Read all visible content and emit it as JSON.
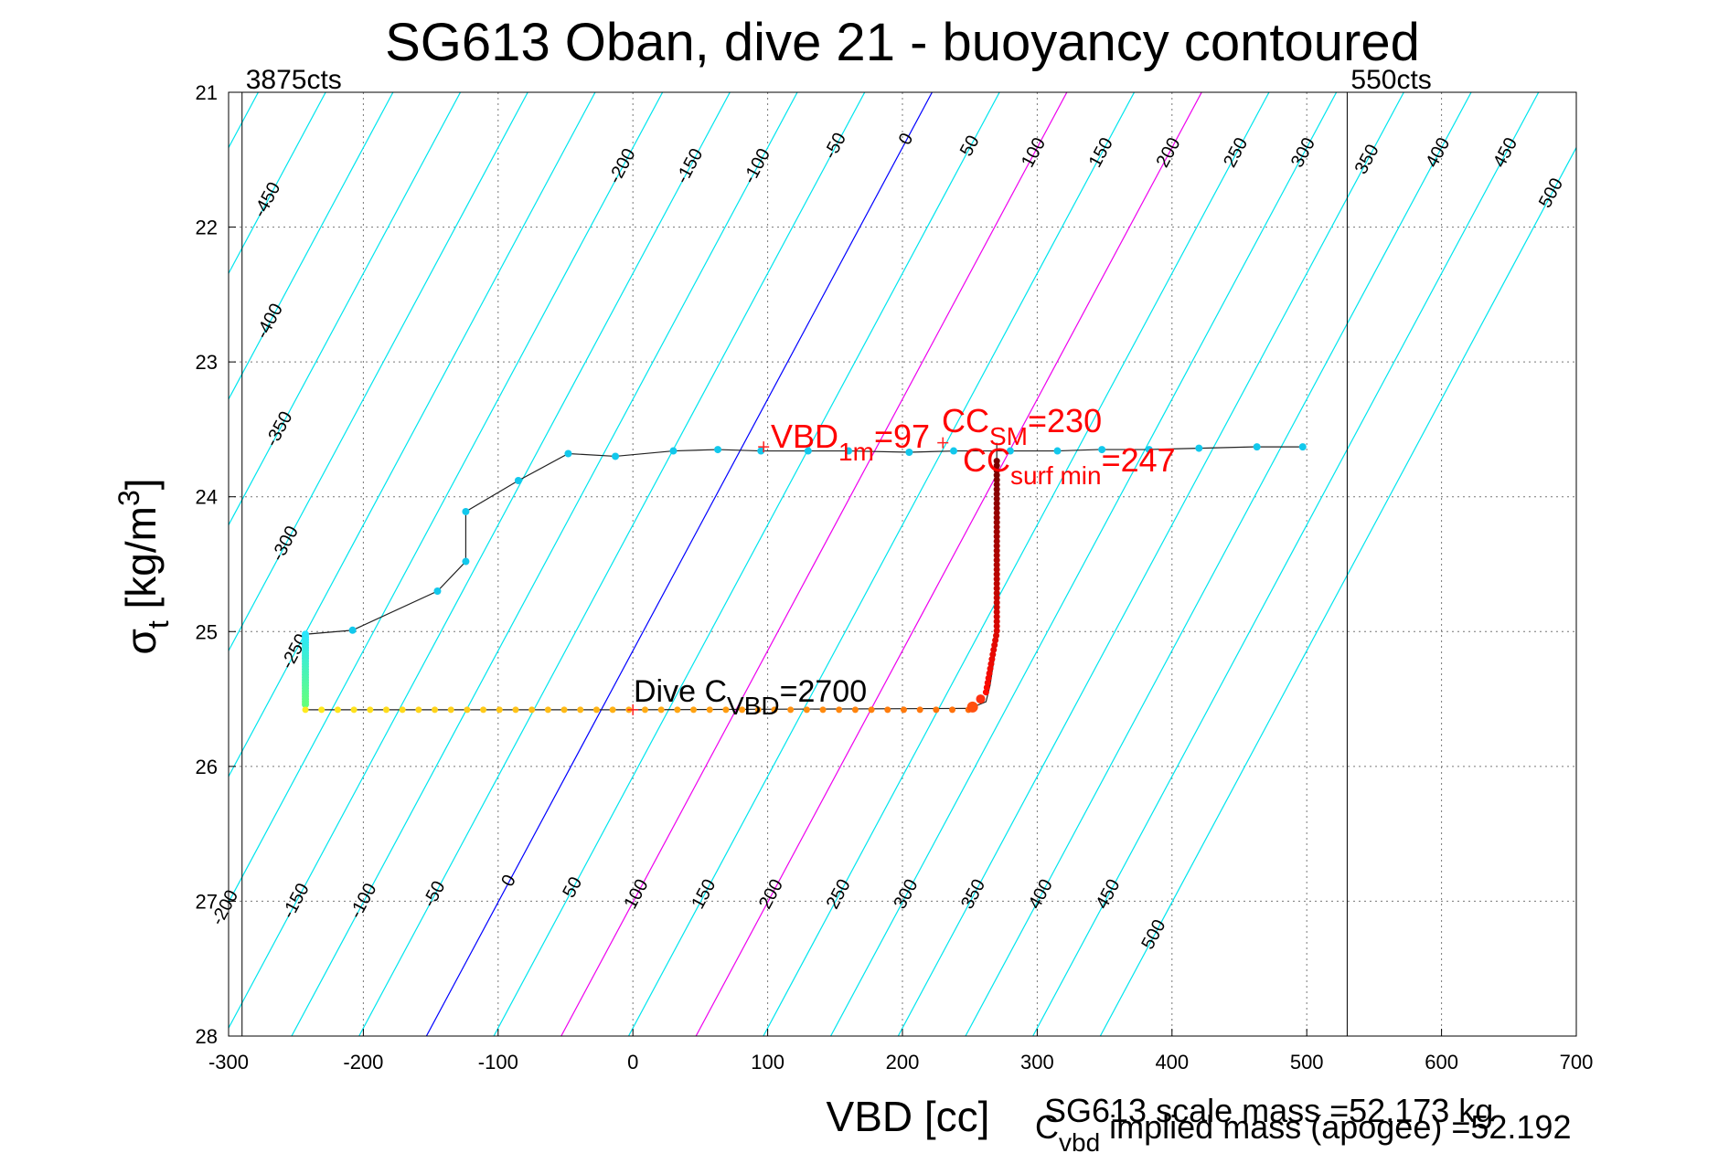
{
  "chart_data": {
    "type": "scatter",
    "title": "SG613 Oban, dive 21 - buoyancy contoured",
    "xlabel": "VBD [cc]",
    "ylabel": {
      "base": "σ",
      "sub": "t",
      "rest": " [kg/m",
      "sup": "3",
      "close": "]"
    },
    "xlim": [
      -300,
      700
    ],
    "ylim": [
      21,
      28
    ],
    "y_reversed": true,
    "grid": true,
    "xticks": [
      -300,
      -200,
      -100,
      0,
      100,
      200,
      300,
      400,
      500,
      600,
      700
    ],
    "yticks": [
      21,
      22,
      23,
      24,
      25,
      26,
      27,
      28
    ],
    "count_lines": [
      {
        "x": -290,
        "label": "3875cts"
      },
      {
        "x": 530,
        "label": "550cts"
      }
    ],
    "buoyancy_contours": {
      "values": [
        -500,
        -450,
        -400,
        -350,
        -300,
        -250,
        -200,
        -150,
        -100,
        -50,
        0,
        50,
        100,
        150,
        200,
        250,
        300,
        350,
        400,
        450,
        500
      ],
      "x_at_sigma25": -242.4,
      "cc_per_unit_sigma": -53.6,
      "cc_per_buoyancy": 1.0,
      "colors": {
        "default": "#00e5ee",
        "zero": "#0000ff",
        "magenta_values": [
          100,
          200
        ],
        "magenta": "#ee00ee"
      },
      "top_labels": [
        {
          "value": -450,
          "sigma": 21.8
        },
        {
          "value": -400,
          "sigma": 22.7
        },
        {
          "value": -350,
          "sigma": 23.5
        },
        {
          "value": -300,
          "sigma": 24.35
        },
        {
          "value": -250,
          "sigma": 25.15
        },
        {
          "value": -200,
          "sigma": 21.55
        },
        {
          "value": -150,
          "sigma": 21.55
        },
        {
          "value": -100,
          "sigma": 21.55
        },
        {
          "value": -50,
          "sigma": 21.4
        },
        {
          "value": 0,
          "sigma": 21.35
        },
        {
          "value": 50,
          "sigma": 21.4
        },
        {
          "value": 100,
          "sigma": 21.45
        },
        {
          "value": 150,
          "sigma": 21.45
        },
        {
          "value": 200,
          "sigma": 21.45
        },
        {
          "value": 250,
          "sigma": 21.45
        },
        {
          "value": 300,
          "sigma": 21.45
        },
        {
          "value": 350,
          "sigma": 21.5
        },
        {
          "value": 400,
          "sigma": 21.45
        },
        {
          "value": 450,
          "sigma": 21.45
        },
        {
          "value": 500,
          "sigma": 21.75
        }
      ],
      "bottom_labels": [
        {
          "value": -200,
          "sigma": 27.05
        },
        {
          "value": -150,
          "sigma": 27.0
        },
        {
          "value": -100,
          "sigma": 27.0
        },
        {
          "value": -50,
          "sigma": 26.95
        },
        {
          "value": 0,
          "sigma": 26.85
        },
        {
          "value": 50,
          "sigma": 26.9
        },
        {
          "value": 100,
          "sigma": 26.95
        },
        {
          "value": 150,
          "sigma": 26.95
        },
        {
          "value": 200,
          "sigma": 26.95
        },
        {
          "value": 250,
          "sigma": 26.95
        },
        {
          "value": 300,
          "sigma": 26.95
        },
        {
          "value": 350,
          "sigma": 26.95
        },
        {
          "value": 400,
          "sigma": 26.95
        },
        {
          "value": 450,
          "sigma": 26.95
        },
        {
          "value": 500,
          "sigma": 27.25
        }
      ]
    },
    "profile_line": [
      [
        497,
        23.63
      ],
      [
        460,
        23.63
      ],
      [
        420,
        23.64
      ],
      [
        380,
        23.65
      ],
      [
        345,
        23.65
      ],
      [
        315,
        23.66
      ],
      [
        270,
        23.66
      ],
      [
        240,
        23.66
      ],
      [
        205,
        23.67
      ],
      [
        160,
        23.66
      ],
      [
        130,
        23.66
      ],
      [
        95,
        23.66
      ],
      [
        63,
        23.65
      ],
      [
        30,
        23.66
      ],
      [
        -13,
        23.7
      ],
      [
        -48,
        23.68
      ],
      [
        -85,
        23.88
      ],
      [
        -124,
        24.11
      ],
      [
        -124,
        24.48
      ],
      [
        -145,
        24.7
      ],
      [
        -208,
        24.99
      ],
      [
        -243,
        25.02
      ],
      [
        -243,
        25.58
      ],
      [
        0,
        25.58
      ],
      [
        250,
        25.57
      ],
      [
        262,
        25.52
      ],
      [
        265,
        25.4
      ],
      [
        268,
        25.2
      ],
      [
        270,
        25.0
      ],
      [
        270,
        24.4
      ],
      [
        270,
        23.95
      ],
      [
        270,
        23.6
      ]
    ],
    "surface_points": [
      [
        497,
        23.63
      ],
      [
        463,
        23.63
      ],
      [
        420,
        23.64
      ],
      [
        383,
        23.65
      ],
      [
        348,
        23.65
      ],
      [
        315,
        23.66
      ],
      [
        280,
        23.66
      ],
      [
        238,
        23.66
      ],
      [
        205,
        23.67
      ],
      [
        160,
        23.66
      ],
      [
        130,
        23.66
      ],
      [
        95,
        23.66
      ],
      [
        63,
        23.65
      ],
      [
        30,
        23.66
      ],
      [
        -13,
        23.7
      ],
      [
        -48,
        23.68
      ],
      [
        -85,
        23.88
      ],
      [
        -124,
        24.11
      ],
      [
        -124,
        24.48
      ],
      [
        -145,
        24.7
      ],
      [
        -208,
        24.99
      ]
    ],
    "annotations": {
      "vbd_1m": {
        "main": "VBD",
        "sub": "1m",
        "rest": "=97",
        "x": 97,
        "sigma": 23.63
      },
      "cc_sm": {
        "main": "CC",
        "sub": "SM",
        "rest": "=230",
        "x": 230,
        "sigma": 23.6
      },
      "cc_surf_min": {
        "main": "CC",
        "sub": "surf min",
        "rest": "=247",
        "x": 247,
        "sigma": 23.63
      },
      "dive_cvbd": {
        "main": "Dive C",
        "sub": "VBD",
        "rest": "=2700",
        "x": 0,
        "sigma": 25.58
      }
    },
    "footer_text_1": "SG613 scale mass =52.173 kg",
    "footer_text_2": {
      "main": "C",
      "sub": "vbd",
      "rest": " implied mass (apogee) =52.192"
    }
  }
}
